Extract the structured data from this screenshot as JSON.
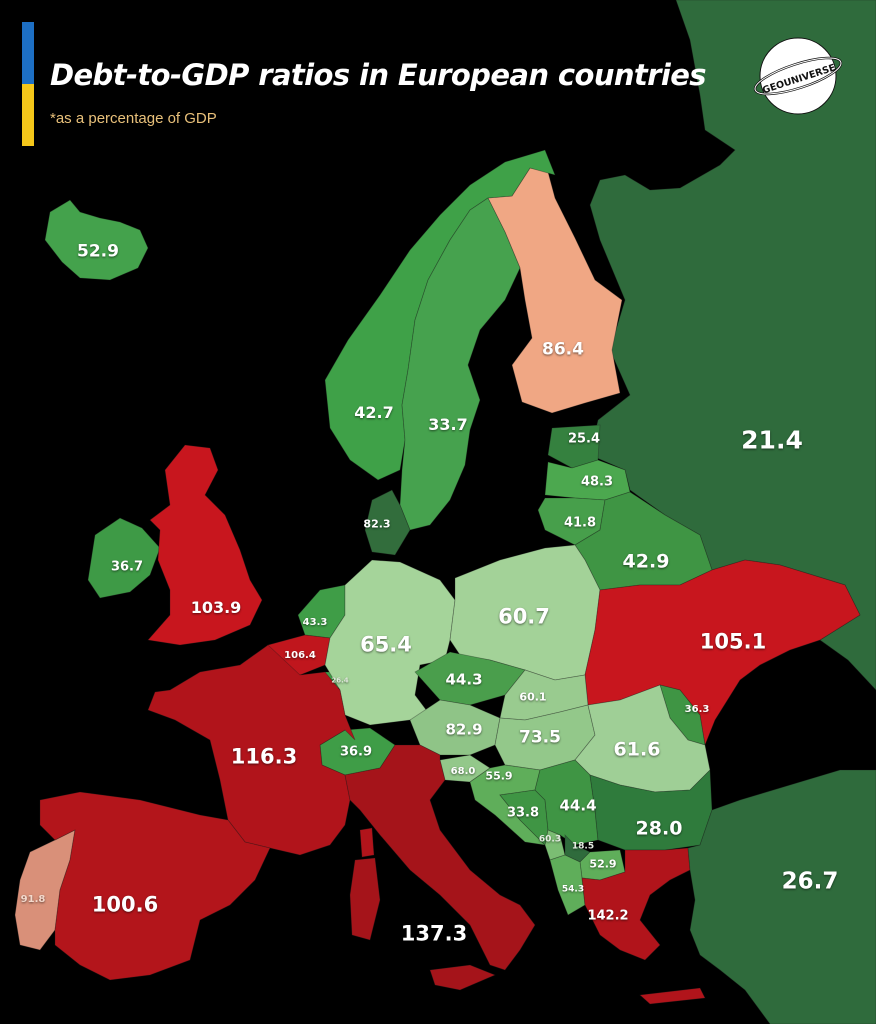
{
  "header": {
    "title": "Debt-to-GDP ratios in European countries",
    "subtitle": "*as a percentage of GDP",
    "flag_colors": [
      "#1d6fc4",
      "#f5c71a"
    ]
  },
  "logo": {
    "text": "GEOUNIVERSE"
  },
  "palette": {
    "sea": "#000000",
    "strong_green": "#2f6b3c",
    "mid_green": "#3f9544",
    "light_green": "#58ad55",
    "pale_green": "#9fcf96",
    "red": "#c0161d",
    "dark_red": "#a0141a",
    "salmon": "#f0a784"
  },
  "countries": [
    {
      "id": "iceland",
      "value": "52.9",
      "fill": "#44a24c"
    },
    {
      "id": "norway",
      "value": "42.7",
      "fill": "#3fa148"
    },
    {
      "id": "sweden",
      "value": "33.7",
      "fill": "#46a24e"
    },
    {
      "id": "finland",
      "value": "86.4",
      "fill": "#f0a784"
    },
    {
      "id": "russia",
      "value": "21.4",
      "fill": "#2f6b3c"
    },
    {
      "id": "estonia",
      "value": "25.4",
      "fill": "#35813f"
    },
    {
      "id": "latvia",
      "value": "48.3",
      "fill": "#4ca84f"
    },
    {
      "id": "lithuania",
      "value": "41.8",
      "fill": "#479f4b"
    },
    {
      "id": "belarus",
      "value": "42.9",
      "fill": "#3f9544"
    },
    {
      "id": "denmark",
      "value": "82.3",
      "fill": "#326d3c"
    },
    {
      "id": "ireland",
      "value": "36.7",
      "fill": "#3e9a46"
    },
    {
      "id": "uk",
      "value": "103.9",
      "fill": "#c8161e"
    },
    {
      "id": "netherlands",
      "value": "43.3",
      "fill": "#3f9d47"
    },
    {
      "id": "belgium",
      "value": "106.4",
      "fill": "#c0161d"
    },
    {
      "id": "luxembourg",
      "value": "26.4",
      "fill": "#3f9d47"
    },
    {
      "id": "germany",
      "value": "65.4",
      "fill": "#a5d49a"
    },
    {
      "id": "poland",
      "value": "60.7",
      "fill": "#a3d298"
    },
    {
      "id": "ukraine",
      "value": "105.1",
      "fill": "#c8161e"
    },
    {
      "id": "czechia",
      "value": "44.3",
      "fill": "#4a9e4c"
    },
    {
      "id": "slovakia",
      "value": "60.1",
      "fill": "#99cb8f"
    },
    {
      "id": "austria",
      "value": "82.9",
      "fill": "#8fc487"
    },
    {
      "id": "hungary",
      "value": "73.5",
      "fill": "#93c88a"
    },
    {
      "id": "moldova",
      "value": "36.3",
      "fill": "#3f9544"
    },
    {
      "id": "romania",
      "value": "61.6",
      "fill": "#9fcf96"
    },
    {
      "id": "switzerland",
      "value": "36.9",
      "fill": "#3f9d47"
    },
    {
      "id": "france",
      "value": "116.3",
      "fill": "#b1141b"
    },
    {
      "id": "slovenia",
      "value": "68.0",
      "fill": "#93c88a"
    },
    {
      "id": "croatia",
      "value": "55.9",
      "fill": "#5fae5a"
    },
    {
      "id": "bosnia",
      "value": "33.8",
      "fill": "#3f9544"
    },
    {
      "id": "serbia",
      "value": "44.4",
      "fill": "#3f9544"
    },
    {
      "id": "bulgaria",
      "value": "28.0",
      "fill": "#2f7b3c"
    },
    {
      "id": "montenegro",
      "value": "60.3",
      "fill": "#7bbd73"
    },
    {
      "id": "kosovo",
      "value": "18.5",
      "fill": "#2f6b3c"
    },
    {
      "id": "north-macedonia",
      "value": "52.9",
      "fill": "#5fae5a"
    },
    {
      "id": "albania",
      "value": "54.3",
      "fill": "#5fae5a"
    },
    {
      "id": "portugal",
      "value": "91.8",
      "fill": "#d99079"
    },
    {
      "id": "spain",
      "value": "100.6",
      "fill": "#b3151b"
    },
    {
      "id": "italy",
      "value": "137.3",
      "fill": "#a5141a"
    },
    {
      "id": "greece",
      "value": "142.2",
      "fill": "#b1141b"
    },
    {
      "id": "turkey",
      "value": "26.7",
      "fill": "#2f6b3c"
    }
  ]
}
